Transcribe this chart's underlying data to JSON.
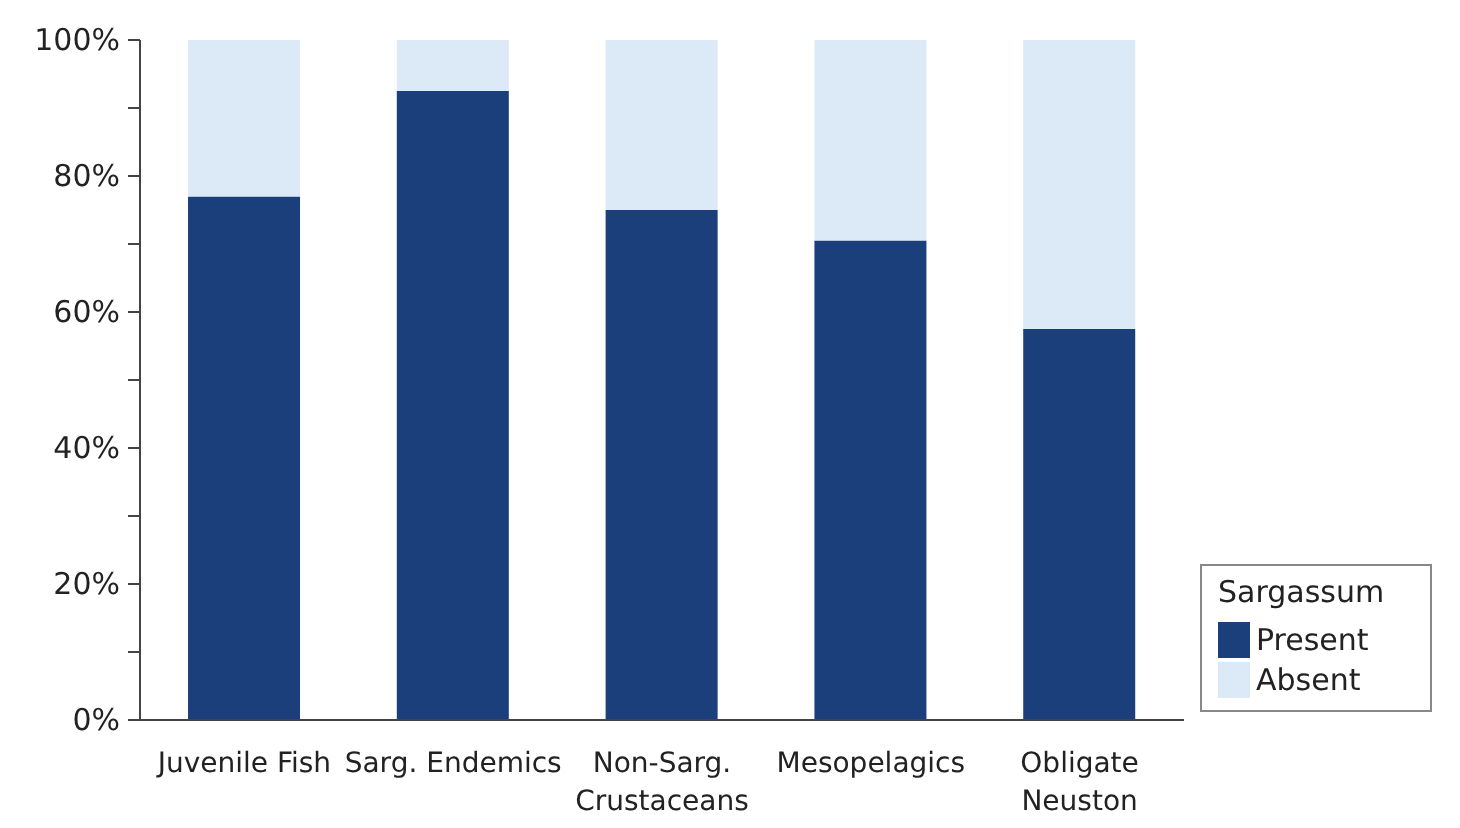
{
  "chart_data": {
    "type": "bar",
    "stacked": true,
    "categories": [
      "Juvenile Fish",
      "Sarg. Endemics",
      "Non-Sarg. Crustaceans",
      "Mesopelagics",
      "Obligate Neuston"
    ],
    "series": [
      {
        "name": "Present",
        "color": "#1a3f7a",
        "values": [
          77,
          92.5,
          75,
          70.5,
          57.5
        ]
      },
      {
        "name": "Absent",
        "color": "#dce9f6",
        "values": [
          23,
          7.5,
          25,
          29.5,
          42.5
        ]
      }
    ],
    "ylim": [
      0,
      100
    ],
    "yticks": [
      {
        "value": 0,
        "label": "0%"
      },
      {
        "value": 10,
        "label": null
      },
      {
        "value": 20,
        "label": "20%"
      },
      {
        "value": 30,
        "label": null
      },
      {
        "value": 40,
        "label": "40%"
      },
      {
        "value": 50,
        "label": null
      },
      {
        "value": 60,
        "label": "60%"
      },
      {
        "value": 70,
        "label": null
      },
      {
        "value": 80,
        "label": "80%"
      },
      {
        "value": 90,
        "label": null
      },
      {
        "value": 100,
        "label": "100%"
      }
    ],
    "legend": "bottom right",
    "legend_title": "Sargassum",
    "grid": false
  }
}
